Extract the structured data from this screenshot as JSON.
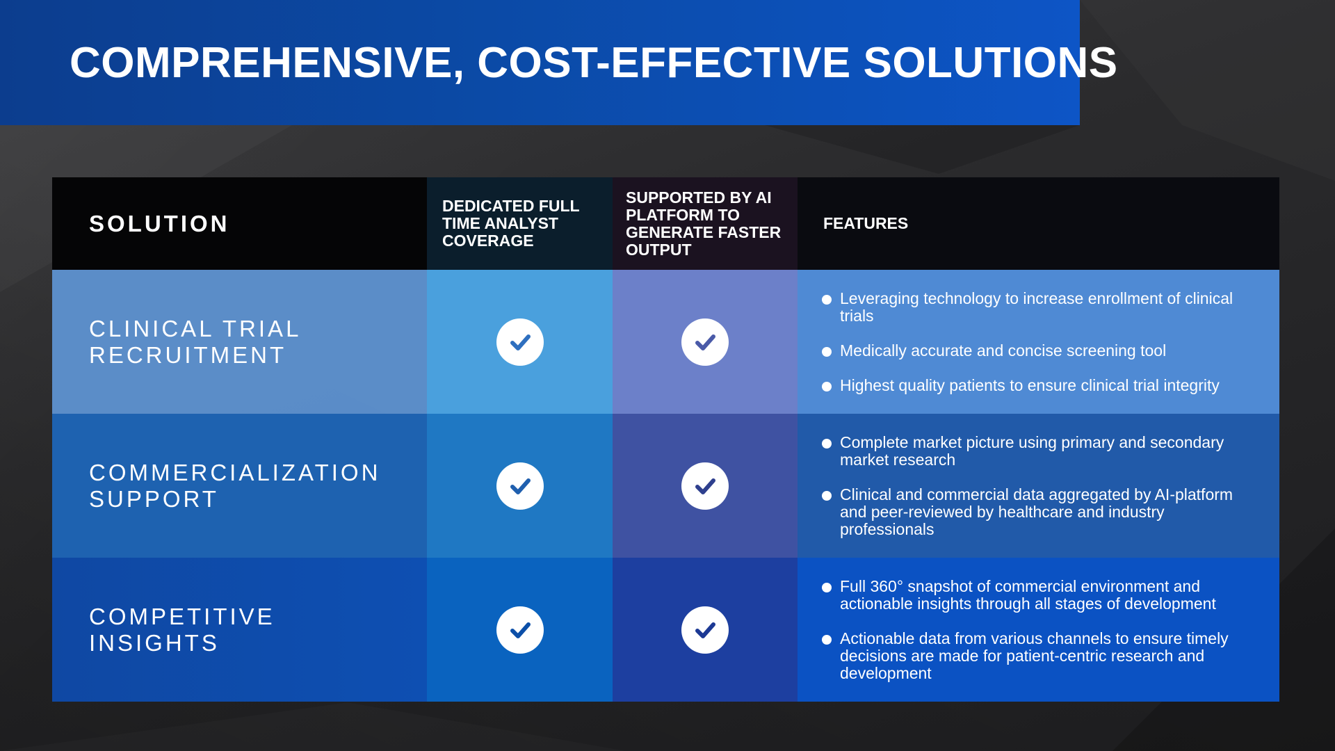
{
  "title": "COMPREHENSIVE, COST-EFFECTIVE SOLUTIONS",
  "table": {
    "headers": {
      "solution": "SOLUTION",
      "dedicated": "DEDICATED FULL TIME ANALYST COVERAGE",
      "supported": "SUPPORTED BY AI PLATFORM TO GENERATE FASTER OUTPUT",
      "features": "FEATURES"
    },
    "rows": [
      {
        "solution": "CLINICAL TRIAL RECRUITMENT",
        "dedicated": "check-icon",
        "supported": "check-icon",
        "features": [
          "Leveraging technology to increase enrollment of clinical trials",
          "Medically accurate and concise screening tool",
          "Highest quality patients to ensure clinical trial integrity"
        ]
      },
      {
        "solution": "COMMERCIALIZATION SUPPORT",
        "dedicated": "check-icon",
        "supported": "check-icon",
        "features": [
          "Complete market picture using primary and secondary market research",
          "Clinical and commercial data aggregated by AI-platform and peer-reviewed by healthcare and industry professionals"
        ]
      },
      {
        "solution": "COMPETITIVE INSIGHTS",
        "dedicated": "check-icon",
        "supported": "check-icon",
        "features": [
          "Full 360° snapshot of commercial environment and actionable insights through all stages of development",
          "Actionable data from various channels  to ensure timely decisions are made for patient-centric research and development"
        ]
      }
    ]
  },
  "colors": {
    "banner": "#0b4aa6",
    "check_mark_col2": "#1f78c3",
    "check_mark_col3": "#3f52a2"
  }
}
